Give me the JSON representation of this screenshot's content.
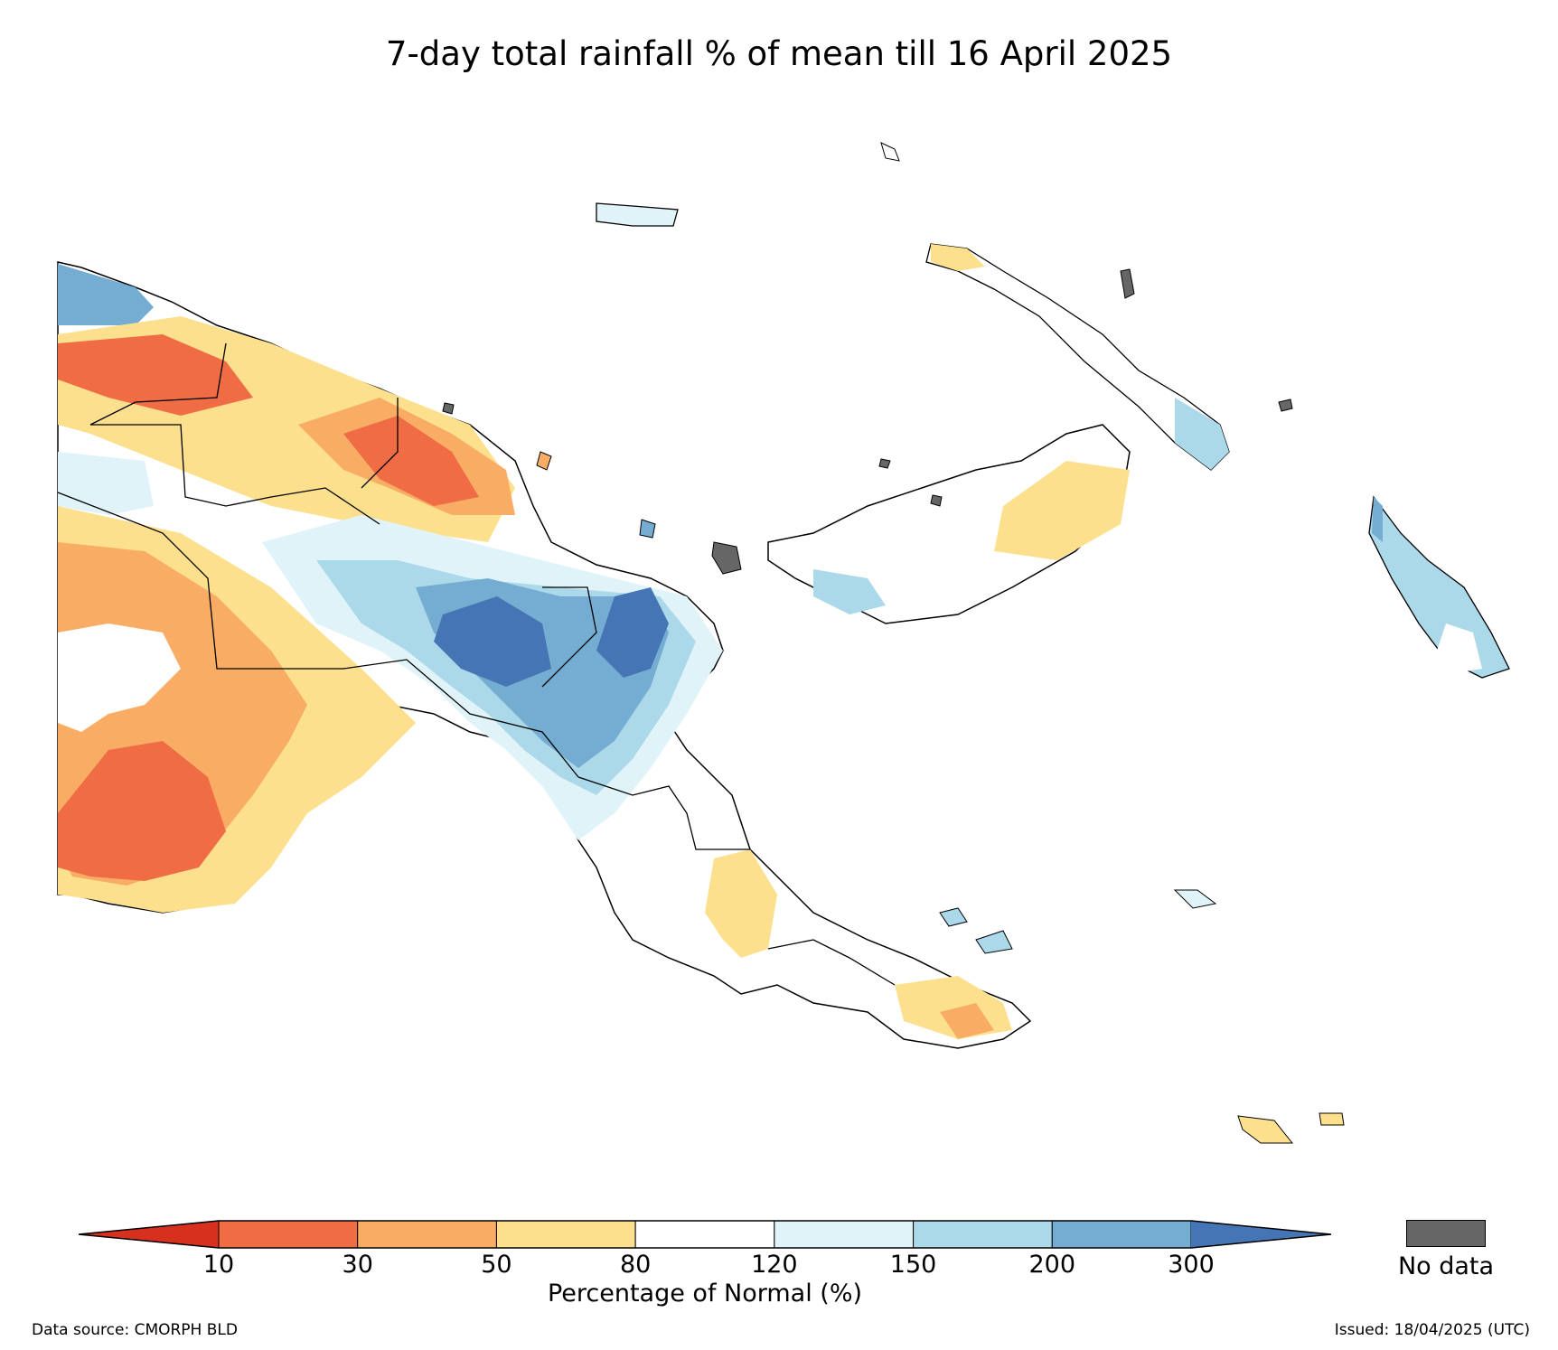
{
  "title": "7-day total rainfall % of mean till 16 April 2025",
  "colorbar": {
    "label": "Percentage of Normal (%)",
    "ticks": [
      "10",
      "30",
      "50",
      "80",
      "120",
      "150",
      "200",
      "300"
    ],
    "colors": [
      "#d7301f",
      "#ef6c45",
      "#f9ad64",
      "#fde08e",
      "#ffffff",
      "#e0f3f8",
      "#abd9e9",
      "#74add1",
      "#4575b4"
    ]
  },
  "no_data": {
    "label": "No data",
    "color": "#666666"
  },
  "footer": {
    "source": "Data source: CMORPH BLD",
    "issued": "Issued: 18/04/2025 (UTC)"
  }
}
